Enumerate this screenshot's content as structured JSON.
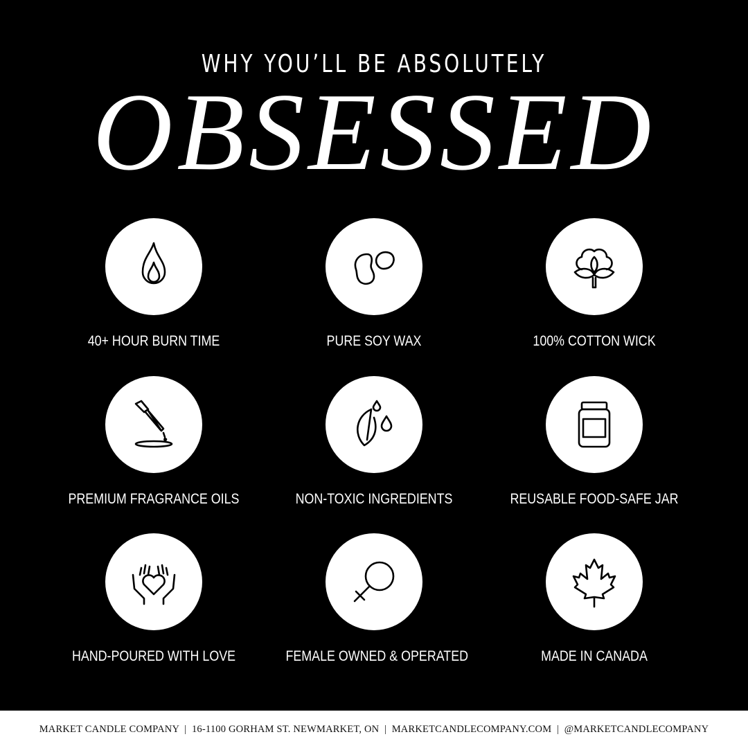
{
  "header": {
    "subtitle": "WHY YOU’LL BE ABSOLUTELY",
    "title": "OBSESSED"
  },
  "features": [
    {
      "label": "40+ HOUR BURN TIME",
      "icon": "flame-icon"
    },
    {
      "label": "PURE SOY WAX",
      "icon": "soybean-icon"
    },
    {
      "label": "100% COTTON WICK",
      "icon": "cotton-icon"
    },
    {
      "label": "PREMIUM FRAGRANCE OILS",
      "icon": "dropper-icon"
    },
    {
      "label": "NON-TOXIC INGREDIENTS",
      "icon": "leaf-drops-icon"
    },
    {
      "label": "REUSABLE FOOD-SAFE JAR",
      "icon": "jar-icon"
    },
    {
      "label": "HAND-POURED WITH LOVE",
      "icon": "hands-heart-icon"
    },
    {
      "label": "FEMALE OWNED & OPERATED",
      "icon": "female-symbol-icon"
    },
    {
      "label": "MADE IN CANADA",
      "icon": "maple-leaf-icon"
    }
  ],
  "footer": {
    "text": "MARKET CANDLE COMPANY  |  16-1100 GORHAM ST. NEWMARKET, ON  |  MARKETCANDLECOMPANY.COM  |  @MARKETCANDLECOMPANY"
  },
  "colors": {
    "background": "#000000",
    "circle": "#ffffff",
    "footer": "#ffffff"
  }
}
